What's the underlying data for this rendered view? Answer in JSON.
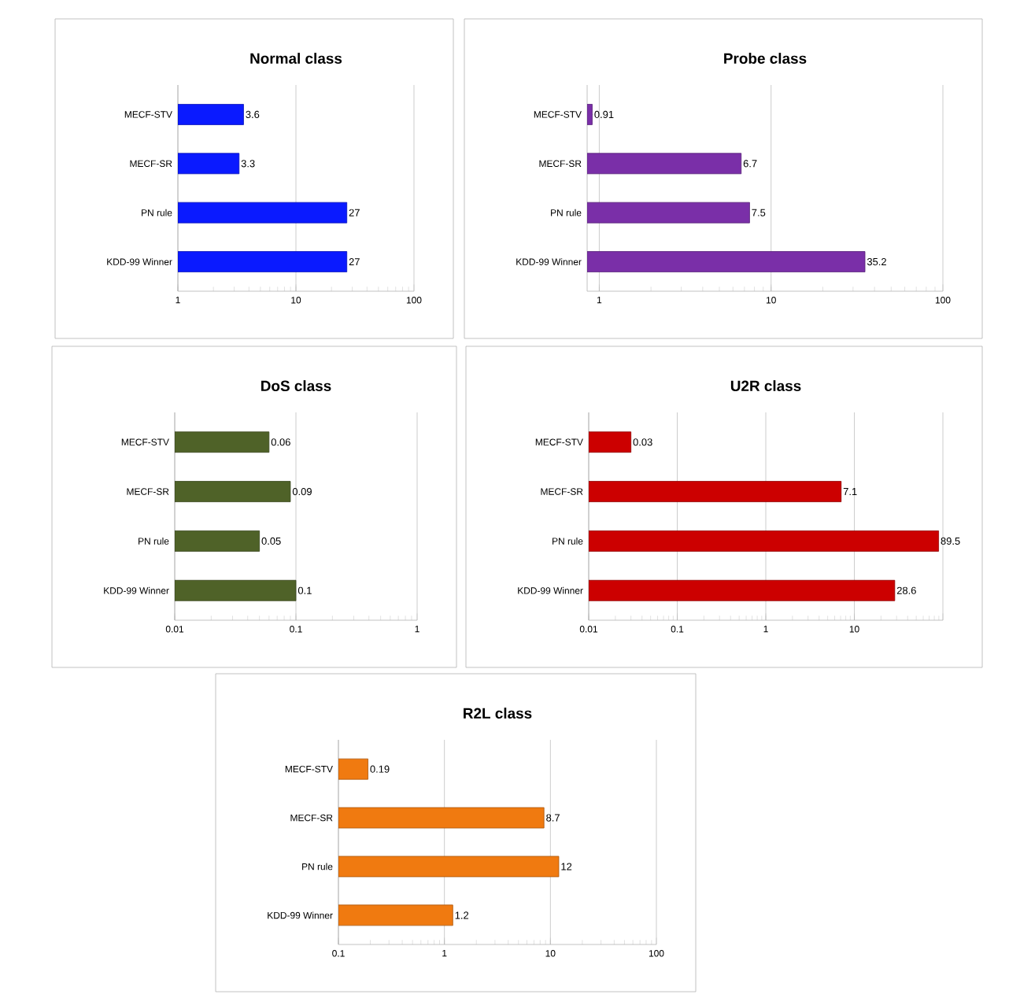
{
  "chart_data": [
    {
      "type": "bar",
      "orientation": "horizontal",
      "title": "Normal class",
      "categories": [
        "MECF-STV",
        "MECF-SR",
        "PN rule",
        "KDD-99 Winner"
      ],
      "values": [
        3.6,
        3.3,
        27,
        27
      ],
      "color": "#0a1aff",
      "log": "x",
      "xlim": [
        1,
        100
      ],
      "xticks": [
        1,
        10,
        100
      ],
      "grid": "x",
      "data_labels": true
    },
    {
      "type": "bar",
      "orientation": "horizontal",
      "title": "Probe class",
      "categories": [
        "MECF-STV",
        "MECF-SR",
        "PN rule",
        "KDD-99 Winner"
      ],
      "values": [
        0.91,
        6.7,
        7.5,
        35.2
      ],
      "color": "#7a2fa8",
      "log": "x",
      "xlim": [
        0.85,
        100
      ],
      "xticks": [
        1,
        10,
        100
      ],
      "grid": "x",
      "data_labels": true
    },
    {
      "type": "bar",
      "orientation": "horizontal",
      "title": "DoS class",
      "categories": [
        "MECF-STV",
        "MECF-SR",
        "PN rule",
        "KDD-99 Winner"
      ],
      "values": [
        0.06,
        0.09,
        0.05,
        0.1
      ],
      "color": "#4f6228",
      "log": "x",
      "xlim": [
        0.01,
        1
      ],
      "xticks": [
        0.01,
        0.1,
        1
      ],
      "grid": "x",
      "data_labels": true
    },
    {
      "type": "bar",
      "orientation": "horizontal",
      "title": "U2R class",
      "categories": [
        "MECF-STV",
        "MECF-SR",
        "PN rule",
        "KDD-99 Winner"
      ],
      "values": [
        0.03,
        7.1,
        89.5,
        28.6
      ],
      "color": "#cc0000",
      "log": "x",
      "xlim": [
        0.01,
        100
      ],
      "xticks": [
        0.01,
        0.1,
        1,
        10,
        {
          "value": 100,
          "label": null
        }
      ],
      "grid": "x",
      "data_labels": true
    },
    {
      "type": "bar",
      "orientation": "horizontal",
      "title": "R2L class",
      "categories": [
        "MECF-STV",
        "MECF-SR",
        "PN rule",
        "KDD-99 Winner"
      ],
      "values": [
        0.19,
        8.7,
        12,
        1.2
      ],
      "color": "#f07a10",
      "log": "x",
      "xlim": [
        0.1,
        100
      ],
      "xticks": [
        0.1,
        1,
        10,
        100
      ],
      "grid": "x",
      "data_labels": true
    }
  ]
}
